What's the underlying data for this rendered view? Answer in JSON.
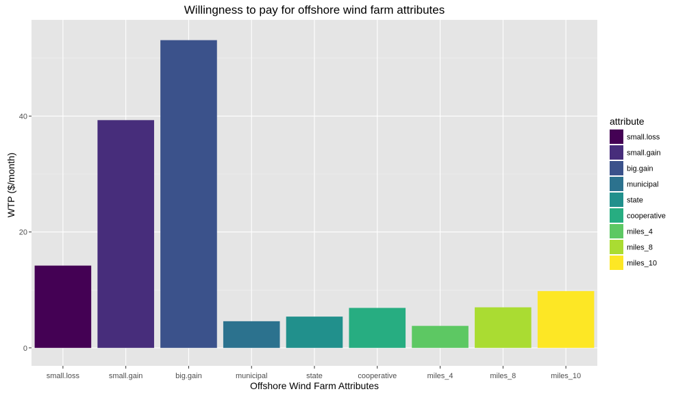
{
  "chart_data": {
    "type": "bar",
    "title": "Willingness to pay for offshore wind farm attributes",
    "xlabel": "Offshore Wind Farm Attributes",
    "ylabel": "WTP ($/month)",
    "categories": [
      "small.loss",
      "small.gain",
      "big.gain",
      "municipal",
      "state",
      "cooperative",
      "miles_4",
      "miles_8",
      "miles_10"
    ],
    "values": [
      14.2,
      39.3,
      53.1,
      4.6,
      5.4,
      6.9,
      3.8,
      7.0,
      9.8
    ],
    "colors": [
      "#440154",
      "#472D7B",
      "#3B528B",
      "#2C728E",
      "#21908C",
      "#27AD81",
      "#5DC863",
      "#AADC32",
      "#FDE725"
    ],
    "ylim": [
      -3.1,
      56.6
    ],
    "yticks": [
      0,
      20,
      40
    ],
    "grid": true,
    "panel_background": "#E5E5E5",
    "legend": {
      "title": "attribute",
      "position": "right",
      "entries": [
        "small.loss",
        "small.gain",
        "big.gain",
        "municipal",
        "state",
        "cooperative",
        "miles_4",
        "miles_8",
        "miles_10"
      ]
    }
  }
}
